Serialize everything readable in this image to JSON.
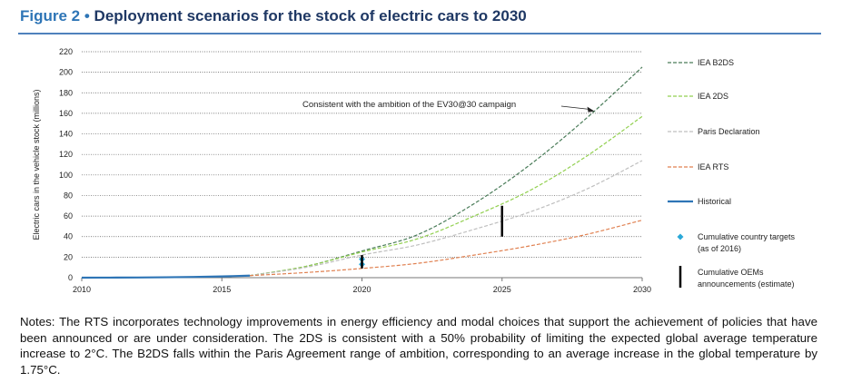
{
  "figure": {
    "label": "Figure 2",
    "bullet": "•",
    "title": "Deployment scenarios for the stock of electric cars to 2030"
  },
  "notes": "Notes: The RTS incorporates technology improvements in energy efficiency and modal choices that support the achievement of policies that have been announced or are under consideration. The 2DS is consistent with a 50% probability of limiting the expected global average temperature increase to 2°C. The B2DS falls within the Paris Agreement range of ambition, corresponding to an average increase in the global temperature by 1.75°C.",
  "chart_data": {
    "type": "line",
    "title": "",
    "xlabel": "",
    "ylabel": "Electric cars in the vehicle stock (millions)",
    "xlim": [
      2010,
      2030
    ],
    "ylim": [
      0,
      220
    ],
    "xticks": [
      2010,
      2015,
      2020,
      2025,
      2030
    ],
    "yticks": [
      0,
      20,
      40,
      60,
      80,
      100,
      120,
      140,
      160,
      180,
      200,
      220
    ],
    "grid": "horizontal dotted",
    "legend": "right",
    "series": [
      {
        "name": "IEA B2DS",
        "color": "#4a7c59",
        "style": "dashed",
        "x": [
          2016,
          2018,
          2020,
          2022,
          2024,
          2026,
          2028,
          2030
        ],
        "y": [
          2,
          11,
          26,
          42,
          72,
          110,
          155,
          205
        ]
      },
      {
        "name": "IEA 2DS",
        "color": "#92d050",
        "style": "dashed",
        "x": [
          2016,
          2018,
          2020,
          2022,
          2024,
          2026,
          2028,
          2030
        ],
        "y": [
          2,
          11,
          25,
          38,
          60,
          85,
          118,
          157
        ]
      },
      {
        "name": "Paris Declaration",
        "color": "#bfbfbf",
        "style": "dashed",
        "x": [
          2016,
          2018,
          2020,
          2022,
          2024,
          2026,
          2028,
          2030
        ],
        "y": [
          2,
          10,
          22,
          32,
          47,
          64,
          86,
          114
        ]
      },
      {
        "name": "IEA RTS",
        "color": "#e08050",
        "style": "dashed",
        "x": [
          2016,
          2018,
          2020,
          2022,
          2024,
          2026,
          2028,
          2030
        ],
        "y": [
          2,
          5,
          9,
          14,
          22,
          31,
          42,
          56
        ]
      },
      {
        "name": "Historical",
        "color": "#2e75b6",
        "style": "solid",
        "x": [
          2010,
          2011,
          2012,
          2013,
          2014,
          2015,
          2016
        ],
        "y": [
          0.02,
          0.06,
          0.18,
          0.38,
          0.7,
          1.2,
          2.0
        ]
      }
    ],
    "markers": [
      {
        "name": "Cumulative country targets",
        "name_line2": "(as of 2016)",
        "shape": "diamond",
        "color": "#2aa8d8",
        "points": [
          {
            "x": 2020,
            "y": 13
          },
          {
            "x": 2020,
            "y": 18
          }
        ]
      },
      {
        "name": "Cumulative OEMs",
        "name_line2": "announcements (estimate)",
        "shape": "vbar",
        "color": "#000000",
        "ranges": [
          {
            "x": 2020,
            "y0": 9,
            "y1": 22
          },
          {
            "x": 2025,
            "y0": 40,
            "y1": 70
          }
        ]
      }
    ],
    "annotation": {
      "text": "Consistent with the ambition of the EV30@30 campaign",
      "target_x": 2028.3,
      "target_y": 162
    }
  }
}
